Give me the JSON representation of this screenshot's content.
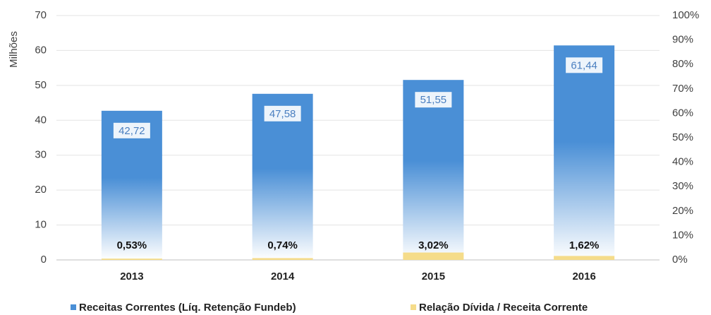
{
  "chart_data": {
    "type": "bar",
    "y_label": "Milhões",
    "categories": [
      "2013",
      "2014",
      "2015",
      "2016"
    ],
    "series": [
      {
        "name": "Receitas Correntes (Líq. Retenção Fundeb)",
        "color": "#4a8fd6",
        "values": [
          42.72,
          47.58,
          51.55,
          61.44
        ],
        "value_labels": [
          "42,72",
          "47,58",
          "51,55",
          "61,44"
        ]
      },
      {
        "name": "Relação Dívida / Receita Corrente",
        "color": "#f5dc8a",
        "axis": "y2",
        "values": [
          0.53,
          0.74,
          3.02,
          1.62
        ],
        "value_labels": [
          "0,53%",
          "0,74%",
          "3,02%",
          "1,62%"
        ]
      }
    ],
    "ylim": [
      0,
      70
    ],
    "yticks": [
      0,
      10,
      20,
      30,
      40,
      50,
      60,
      70
    ],
    "y2lim": [
      0,
      100
    ],
    "y2ticks": [
      {
        "value": 0,
        "label": "0%"
      },
      {
        "value": 10,
        "label": "10%"
      },
      {
        "value": 20,
        "label": "20%"
      },
      {
        "value": 30,
        "label": "30%"
      },
      {
        "value": 40,
        "label": "40%"
      },
      {
        "value": 50,
        "label": "50%"
      },
      {
        "value": 60,
        "label": "60%"
      },
      {
        "value": 70,
        "label": "70%"
      },
      {
        "value": 80,
        "label": "80%"
      },
      {
        "value": 90,
        "label": "90%"
      },
      {
        "value": 100,
        "label": "100%"
      }
    ],
    "grid": true,
    "legend": "bottom"
  }
}
